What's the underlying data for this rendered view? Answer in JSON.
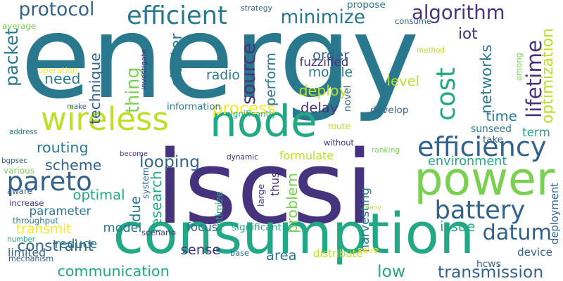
{
  "palette": {
    "dark_purple": "#45337d",
    "blue": "#33638d",
    "teal": "#2a788e",
    "green": "#22a884",
    "light_green": "#7ad151",
    "yellow_green": "#bddf26",
    "yellow": "#fde725"
  },
  "words": [
    {
      "text": "energy",
      "color": "#2a788e",
      "vertical": false
    },
    {
      "text": "iscsi",
      "color": "#45337d",
      "vertical": false
    },
    {
      "text": "consumption",
      "color": "#22a884",
      "vertical": false
    },
    {
      "text": "power",
      "color": "#7ad151",
      "vertical": false
    },
    {
      "text": "node",
      "color": "#22a884",
      "vertical": false
    },
    {
      "text": "wireless",
      "color": "#bddf26",
      "vertical": false
    },
    {
      "text": "efficiency",
      "color": "#33638d",
      "vertical": false
    },
    {
      "text": "protocol",
      "color": "#33638d",
      "vertical": false
    },
    {
      "text": "efficient",
      "color": "#2a788e",
      "vertical": false
    },
    {
      "text": "minimize",
      "color": "#2a788e",
      "vertical": false
    },
    {
      "text": "algorithm",
      "color": "#45337d",
      "vertical": false
    },
    {
      "text": "pareto",
      "color": "#33638d",
      "vertical": false
    },
    {
      "text": "battery",
      "color": "#33638d",
      "vertical": false
    },
    {
      "text": "datum",
      "color": "#33638d",
      "vertical": false
    },
    {
      "text": "transmission",
      "color": "#33638d",
      "vertical": false
    },
    {
      "text": "communication",
      "color": "#22a884",
      "vertical": false
    },
    {
      "text": "lifetime",
      "color": "#45337d",
      "vertical": true
    },
    {
      "text": "cost",
      "color": "#22a884",
      "vertical": true
    },
    {
      "text": "optimization",
      "color": "#bddf26",
      "vertical": true
    },
    {
      "text": "routing",
      "color": "#2a788e",
      "vertical": false
    },
    {
      "text": "scheme",
      "color": "#33638d",
      "vertical": false
    },
    {
      "text": "optimal",
      "color": "#22a884",
      "vertical": false
    },
    {
      "text": "parameter",
      "color": "#2a788e",
      "vertical": false
    },
    {
      "text": "transmit",
      "color": "#fde725",
      "vertical": false
    },
    {
      "text": "constraint",
      "color": "#33638d",
      "vertical": false
    },
    {
      "text": "reduce",
      "color": "#2a788e",
      "vertical": false
    },
    {
      "text": "model",
      "color": "#2a788e",
      "vertical": false
    },
    {
      "text": "environment",
      "color": "#22a884",
      "vertical": false
    },
    {
      "text": "harvesting",
      "color": "#2a788e",
      "vertical": true
    },
    {
      "text": "problem",
      "color": "#7ad151",
      "vertical": true
    },
    {
      "text": "research",
      "color": "#22a884",
      "vertical": true
    },
    {
      "text": "optimize",
      "color": "#22a884",
      "vertical": true
    },
    {
      "text": "due",
      "color": "#2a788e",
      "vertical": true
    },
    {
      "text": "looping",
      "color": "#33638d",
      "vertical": false
    },
    {
      "text": "process",
      "color": "#fde725",
      "vertical": false
    },
    {
      "text": "delay",
      "color": "#45337d",
      "vertical": false
    },
    {
      "text": "deploy",
      "color": "#bddf26",
      "vertical": false
    },
    {
      "text": "mobile",
      "color": "#2a788e",
      "vertical": false
    },
    {
      "text": "order",
      "color": "#33638d",
      "vertical": false
    },
    {
      "text": "level",
      "color": "#bddf26",
      "vertical": false
    },
    {
      "text": "iot",
      "color": "#45337d",
      "vertical": false
    },
    {
      "text": "time",
      "color": "#2a788e",
      "vertical": false
    },
    {
      "text": "term",
      "color": "#22a884",
      "vertical": false
    },
    {
      "text": "networks",
      "color": "#2a788e",
      "vertical": true
    },
    {
      "text": "issue",
      "color": "#22a884",
      "vertical": false
    },
    {
      "text": "device",
      "color": "#33638d",
      "vertical": false
    },
    {
      "text": "area",
      "color": "#2a788e",
      "vertical": false
    },
    {
      "text": "low",
      "color": "#22a884",
      "vertical": false
    },
    {
      "text": "sense",
      "color": "#45337d",
      "vertical": false
    },
    {
      "text": "focus",
      "color": "#33638d",
      "vertical": false
    },
    {
      "text": "radio",
      "color": "#2a788e",
      "vertical": false
    },
    {
      "text": "need",
      "color": "#2a788e",
      "vertical": false
    },
    {
      "text": "packet",
      "color": "#2a788e",
      "vertical": true
    },
    {
      "text": "technique",
      "color": "#33638d",
      "vertical": true
    },
    {
      "text": "thing",
      "color": "#7ad151",
      "vertical": true
    },
    {
      "text": "cluster",
      "color": "#2a788e",
      "vertical": true
    },
    {
      "text": "source",
      "color": "#45337d",
      "vertical": true
    },
    {
      "text": "perform",
      "color": "#2a788e",
      "vertical": true
    },
    {
      "text": "fuzzified",
      "color": "#45337d",
      "vertical": false
    },
    {
      "text": "propose",
      "color": "#2a788e",
      "vertical": false
    },
    {
      "text": "information",
      "color": "#2a788e",
      "vertical": false
    },
    {
      "text": "formulate",
      "color": "#bddf26",
      "vertical": false
    },
    {
      "text": "sunseed",
      "color": "#2a788e",
      "vertical": false
    },
    {
      "text": "develop",
      "color": "#33638d",
      "vertical": false
    },
    {
      "text": "thus",
      "color": "#45337d",
      "vertical": true
    },
    {
      "text": "save",
      "color": "#fde725",
      "vertical": false
    },
    {
      "text": "distribute",
      "color": "#bddf26",
      "vertical": false
    },
    {
      "text": "limited",
      "color": "#33638d",
      "vertical": false
    },
    {
      "text": "mechanism",
      "color": "#33638d",
      "vertical": false
    },
    {
      "text": "hcws",
      "color": "#33638d",
      "vertical": false
    },
    {
      "text": "base",
      "color": "#2a788e",
      "vertical": false
    },
    {
      "text": "deployment",
      "color": "#33638d",
      "vertical": true
    },
    {
      "text": "significant",
      "color": "#22a884",
      "vertical": false
    },
    {
      "text": "scenario",
      "color": "#45337d",
      "vertical": false
    },
    {
      "text": "strategy",
      "color": "#33638d",
      "vertical": false
    },
    {
      "text": "consume",
      "color": "#33638d",
      "vertical": false
    },
    {
      "text": "method",
      "color": "#bddf26",
      "vertical": false
    },
    {
      "text": "among",
      "color": "#7ad151",
      "vertical": true
    },
    {
      "text": "average",
      "color": "#7ad151",
      "vertical": false
    },
    {
      "text": "operation",
      "color": "#fde725",
      "vertical": false
    },
    {
      "text": "make",
      "color": "#33638d",
      "vertical": false
    },
    {
      "text": "address",
      "color": "#2a788e",
      "vertical": false
    },
    {
      "text": "bgpsec",
      "color": "#33638d",
      "vertical": false
    },
    {
      "text": "various",
      "color": "#7ad151",
      "vertical": false
    },
    {
      "text": "aware",
      "color": "#33638d",
      "vertical": false
    },
    {
      "text": "increase",
      "color": "#45337d",
      "vertical": false
    },
    {
      "text": "throughput",
      "color": "#2a788e",
      "vertical": false
    },
    {
      "text": "number",
      "color": "#22a884",
      "vertical": false
    },
    {
      "text": "investigate",
      "color": "#45337d",
      "vertical": true
    },
    {
      "text": "significantly",
      "color": "#22a884",
      "vertical": false
    },
    {
      "text": "novel",
      "color": "#33638d",
      "vertical": true
    },
    {
      "text": "route",
      "color": "#bddf26",
      "vertical": false
    },
    {
      "text": "without",
      "color": "#45337d",
      "vertical": false
    },
    {
      "text": "dynamic",
      "color": "#45337d",
      "vertical": false
    },
    {
      "text": "become",
      "color": "#45337d",
      "vertical": false
    },
    {
      "text": "system",
      "color": "#33638d",
      "vertical": true
    },
    {
      "text": "large",
      "color": "#45337d",
      "vertical": true
    },
    {
      "text": "ranking",
      "color": "#7ad151",
      "vertical": false
    },
    {
      "text": "many",
      "color": "#bddf26",
      "vertical": false
    },
    {
      "text": "take",
      "color": "#33638d",
      "vertical": false
    }
  ]
}
